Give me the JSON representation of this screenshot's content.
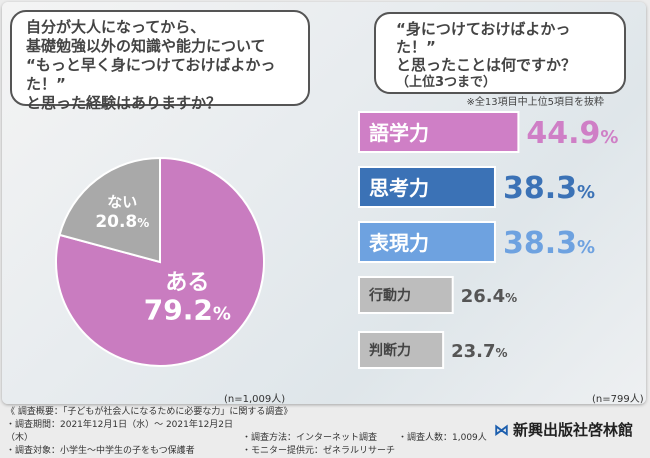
{
  "left_question": [
    "自分が大人になってから、",
    "基礎勉強以外の知識や能力について",
    "“もっと早く身につけておけばよかった！”",
    "と思った経験はありますか？"
  ],
  "right_question": {
    "lines": [
      "“身につけておけばよかった！”",
      "と思ったことは何ですか？"
    ],
    "sub": "（上位3つまで）",
    "note": "※全13項目中上位5項目を抜粋"
  },
  "chart_data": [
    {
      "type": "pie",
      "slices": [
        {
          "label": "ある",
          "value": 79.2,
          "color": "#c97cc0"
        },
        {
          "label": "ない",
          "value": 20.8,
          "color": "#a9a9a9"
        }
      ],
      "unit": "%",
      "note": "(n=1,009人)"
    },
    {
      "type": "bar",
      "orientation": "horizontal",
      "categories": [
        "語学力",
        "思考力",
        "表現力",
        "行動力",
        "判断力"
      ],
      "values": [
        44.9,
        38.3,
        38.3,
        26.4,
        23.7
      ],
      "colors": [
        "#cf7fc6",
        "#3b72b6",
        "#6ea2e0",
        "#bdbdbd",
        "#bdbdbd"
      ],
      "unit": "%",
      "note": "(n=799人)"
    }
  ],
  "footer": {
    "title": "《 調査概要：「子どもが社会人になるために必要な力」に関する調査》",
    "items": [
      "・調査期間：2021年12月1日（水）～ 2021年12月2日（木）",
      "・調査方法：インターネット調査",
      "・調査人数：1,009人",
      "・調査対象：小学生～中学生の子をもつ保護者",
      "・モニター提供元：ゼネラルリサーチ"
    ]
  },
  "logo": "新興出版社啓林館"
}
